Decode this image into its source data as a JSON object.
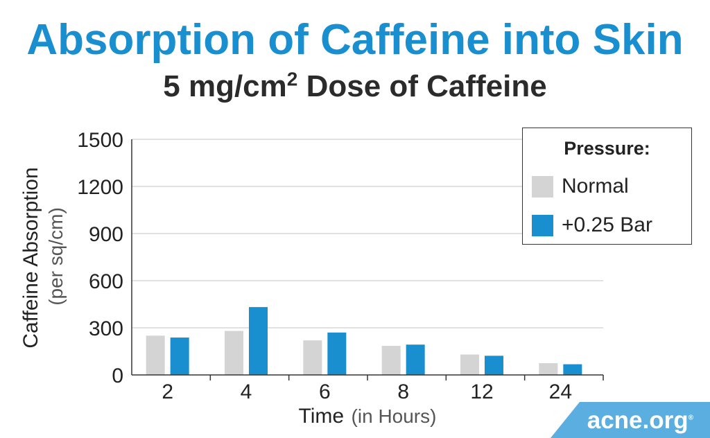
{
  "chart_data": {
    "type": "bar",
    "title": "Absorption of Caffeine into Skin",
    "subtitle_main": "5 mg/cm",
    "subtitle_sup": "2",
    "subtitle_rest": " Dose of Caffeine",
    "xlabel": "Time",
    "xlabel_note": "(in Hours)",
    "ylabel": "Caffeine Absorption",
    "ylabel_note": "(per sq/cm)",
    "categories": [
      "2",
      "4",
      "6",
      "8",
      "12",
      "24"
    ],
    "yticks": [
      0,
      300,
      600,
      900,
      1200,
      1500
    ],
    "ylim": [
      0,
      1500
    ],
    "grid": true,
    "series": [
      {
        "name": "Normal",
        "color": "#d4d4d4",
        "values": [
          250,
          280,
          220,
          185,
          130,
          75
        ]
      },
      {
        "name": "+0.25 Bar",
        "color": "#1a8fd0",
        "values": [
          238,
          432,
          270,
          193,
          122,
          68
        ]
      }
    ],
    "legend": {
      "title": "Pressure:",
      "placement": "top-right"
    }
  },
  "watermark": {
    "text": "acne.org",
    "mark": "®",
    "color": "#5aaee0"
  }
}
